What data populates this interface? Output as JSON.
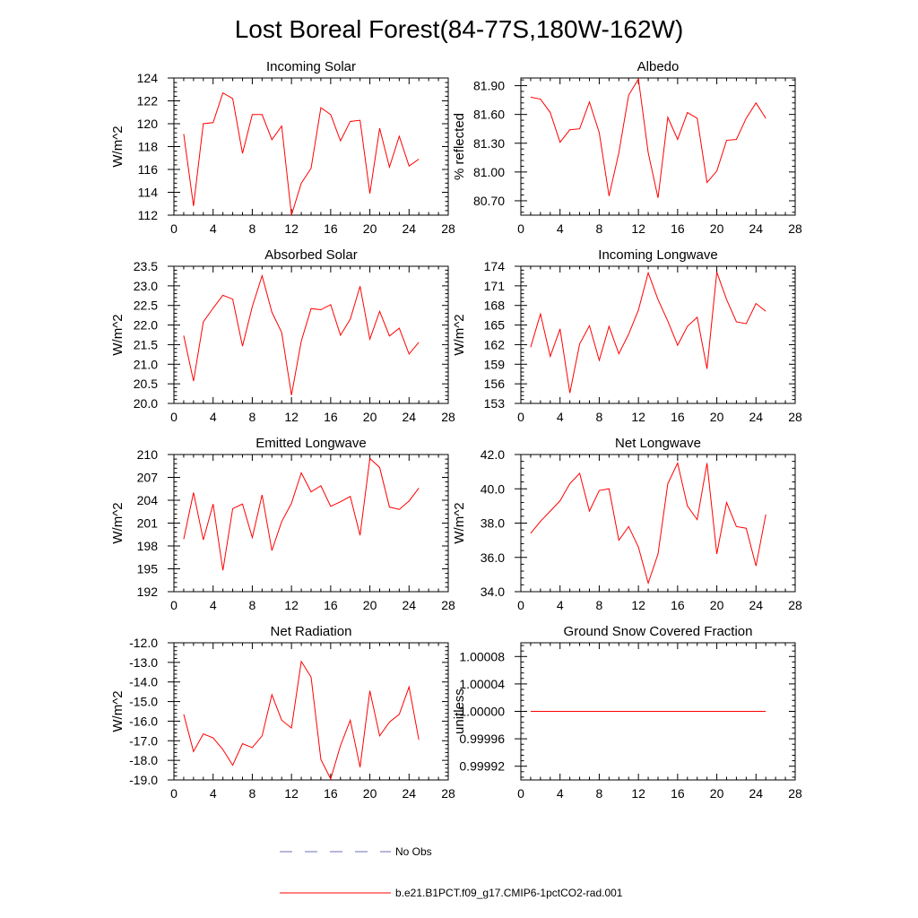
{
  "figure": {
    "title": "Lost Boreal Forest(84-77S,180W-162W)",
    "legend": [
      {
        "label": "No Obs",
        "color": "#6f6fb5",
        "dash": "dashed"
      },
      {
        "label": "b.e21.B1PCT.f09_g17.CMIP6-1pctCO2-rad.001",
        "color": "#ff0000",
        "dash": "solid"
      }
    ]
  },
  "chart_data": [
    {
      "type": "line",
      "title": "Incoming Solar",
      "ylabel": "W/m^2",
      "xlim": [
        0,
        28
      ],
      "ylim": [
        112,
        124
      ],
      "xticks": [
        "0",
        "4",
        "8",
        "12",
        "16",
        "20",
        "24",
        "28"
      ],
      "yticks": [
        "112",
        "114",
        "116",
        "118",
        "120",
        "122",
        "124"
      ],
      "x": [
        1,
        2,
        3,
        4,
        5,
        6,
        7,
        8,
        9,
        10,
        11,
        12,
        13,
        14,
        15,
        16,
        17,
        18,
        19,
        20,
        21,
        22,
        23,
        24,
        25
      ],
      "series": [
        {
          "color": "#ff0000",
          "values": [
            119.1,
            112.8,
            120.0,
            120.1,
            122.7,
            122.2,
            117.4,
            120.8,
            120.8,
            118.6,
            119.8,
            112.0,
            114.8,
            116.1,
            121.4,
            120.8,
            118.5,
            120.2,
            120.3,
            113.9,
            119.6,
            116.2,
            118.9,
            116.3,
            116.9
          ]
        }
      ]
    },
    {
      "type": "line",
      "title": "Albedo",
      "ylabel": "% reflected",
      "xlim": [
        0,
        28
      ],
      "ylim": [
        80.55,
        81.98
      ],
      "xticks": [
        "0",
        "4",
        "8",
        "12",
        "16",
        "20",
        "24",
        "28"
      ],
      "yticks": [
        "80.70",
        "81.00",
        "81.30",
        "81.60",
        "81.90"
      ],
      "x": [
        1,
        2,
        3,
        4,
        5,
        6,
        7,
        8,
        9,
        10,
        11,
        12,
        13,
        14,
        15,
        16,
        17,
        18,
        19,
        20,
        21,
        22,
        23,
        24,
        25
      ],
      "series": [
        {
          "color": "#ff0000",
          "values": [
            81.78,
            81.76,
            81.62,
            81.31,
            81.44,
            81.45,
            81.73,
            81.41,
            80.75,
            81.2,
            81.8,
            81.97,
            81.2,
            80.73,
            81.57,
            81.34,
            81.62,
            81.56,
            80.89,
            81.01,
            81.33,
            81.34,
            81.56,
            81.72,
            81.56
          ]
        }
      ]
    },
    {
      "type": "line",
      "title": "Absorbed Solar",
      "ylabel": "W/m^2",
      "xlim": [
        0,
        28
      ],
      "ylim": [
        20.0,
        23.5
      ],
      "xticks": [
        "0",
        "4",
        "8",
        "12",
        "16",
        "20",
        "24",
        "28"
      ],
      "yticks": [
        "20.0",
        "20.5",
        "21.0",
        "21.5",
        "22.0",
        "22.5",
        "23.0",
        "23.5"
      ],
      "x": [
        1,
        2,
        3,
        4,
        5,
        6,
        7,
        8,
        9,
        10,
        11,
        12,
        13,
        14,
        15,
        16,
        17,
        18,
        19,
        20,
        21,
        22,
        23,
        24,
        25
      ],
      "series": [
        {
          "color": "#ff0000",
          "values": [
            21.73,
            20.57,
            22.08,
            22.43,
            22.76,
            22.66,
            21.46,
            22.47,
            23.26,
            22.33,
            21.81,
            20.21,
            21.59,
            22.42,
            22.39,
            22.52,
            21.74,
            22.15,
            22.99,
            21.64,
            22.35,
            21.72,
            21.92,
            21.26,
            21.56
          ]
        }
      ]
    },
    {
      "type": "line",
      "title": "Incoming Longwave",
      "ylabel": "W/m^2",
      "xlim": [
        0,
        28
      ],
      "ylim": [
        153,
        174
      ],
      "xticks": [
        "0",
        "4",
        "8",
        "12",
        "16",
        "20",
        "24",
        "28"
      ],
      "yticks": [
        "153",
        "156",
        "159",
        "162",
        "165",
        "168",
        "171",
        "174"
      ],
      "x": [
        1,
        2,
        3,
        4,
        5,
        6,
        7,
        8,
        9,
        10,
        11,
        12,
        13,
        14,
        15,
        16,
        17,
        18,
        19,
        20,
        21,
        22,
        23,
        24,
        25
      ],
      "series": [
        {
          "color": "#ff0000",
          "values": [
            161.6,
            166.7,
            160.2,
            164.4,
            154.6,
            162.1,
            164.9,
            159.6,
            164.8,
            160.6,
            163.6,
            167.3,
            173.0,
            168.9,
            165.6,
            161.9,
            164.8,
            166.2,
            158.3,
            173.1,
            168.9,
            165.5,
            165.2,
            168.3,
            167.1
          ]
        }
      ]
    },
    {
      "type": "line",
      "title": "Emitted Longwave",
      "ylabel": "W/m^2",
      "xlim": [
        0,
        28
      ],
      "ylim": [
        192,
        210
      ],
      "xticks": [
        "0",
        "4",
        "8",
        "12",
        "16",
        "20",
        "24",
        "28"
      ],
      "yticks": [
        "192",
        "195",
        "198",
        "201",
        "204",
        "207",
        "210"
      ],
      "x": [
        1,
        2,
        3,
        4,
        5,
        6,
        7,
        8,
        9,
        10,
        11,
        12,
        13,
        14,
        15,
        16,
        17,
        18,
        19,
        20,
        21,
        22,
        23,
        24,
        25
      ],
      "series": [
        {
          "color": "#ff0000",
          "values": [
            198.9,
            205.0,
            198.8,
            203.5,
            194.8,
            202.9,
            203.5,
            199.1,
            204.7,
            197.4,
            201.2,
            203.6,
            207.6,
            205.1,
            205.9,
            203.2,
            203.8,
            204.5,
            199.4,
            209.5,
            208.3,
            203.1,
            202.8,
            203.9,
            205.6
          ]
        }
      ]
    },
    {
      "type": "line",
      "title": "Net Longwave",
      "ylabel": "W/m^2",
      "xlim": [
        0,
        28
      ],
      "ylim": [
        34.0,
        42.0
      ],
      "xticks": [
        "0",
        "4",
        "8",
        "12",
        "16",
        "20",
        "24",
        "28"
      ],
      "yticks": [
        "34.0",
        "36.0",
        "38.0",
        "40.0",
        "42.0"
      ],
      "x": [
        1,
        2,
        3,
        4,
        5,
        6,
        7,
        8,
        9,
        10,
        11,
        12,
        13,
        14,
        15,
        16,
        17,
        18,
        19,
        20,
        21,
        22,
        23,
        24,
        25
      ],
      "series": [
        {
          "color": "#ff0000",
          "values": [
            37.4,
            38.1,
            38.7,
            39.3,
            40.3,
            40.9,
            38.7,
            39.9,
            40.0,
            37.0,
            37.8,
            36.6,
            34.5,
            36.2,
            40.3,
            41.5,
            39.0,
            38.2,
            41.5,
            36.2,
            39.2,
            37.8,
            37.7,
            35.5,
            38.5
          ]
        }
      ]
    },
    {
      "type": "line",
      "title": "Net Radiation",
      "ylabel": "W/m^2",
      "xlim": [
        0,
        28
      ],
      "ylim": [
        -19.0,
        -12.0
      ],
      "xticks": [
        "0",
        "4",
        "8",
        "12",
        "16",
        "20",
        "24",
        "28"
      ],
      "yticks": [
        "-19.0",
        "-18.0",
        "-17.0",
        "-16.0",
        "-15.0",
        "-14.0",
        "-13.0",
        "-12.0"
      ],
      "x": [
        1,
        2,
        3,
        4,
        5,
        6,
        7,
        8,
        9,
        10,
        11,
        12,
        13,
        14,
        15,
        16,
        17,
        18,
        19,
        20,
        21,
        22,
        23,
        24,
        25
      ],
      "series": [
        {
          "color": "#ff0000",
          "values": [
            -15.65,
            -17.55,
            -16.65,
            -16.85,
            -17.45,
            -18.25,
            -17.15,
            -17.35,
            -16.75,
            -14.65,
            -15.95,
            -16.35,
            -12.95,
            -13.75,
            -17.95,
            -18.95,
            -17.25,
            -15.95,
            -18.35,
            -14.45,
            -16.75,
            -16.05,
            -15.65,
            -14.25,
            -16.95
          ]
        }
      ]
    },
    {
      "type": "line",
      "title": "Ground Snow Covered Fraction",
      "ylabel": "unitless",
      "xlim": [
        0,
        28
      ],
      "ylim": [
        0.9999,
        1.0001
      ],
      "xticks": [
        "0",
        "4",
        "8",
        "12",
        "16",
        "20",
        "24",
        "28"
      ],
      "yticks": [
        "0.99992",
        "0.99996",
        "1.00000",
        "1.00004",
        "1.00008"
      ],
      "x": [
        1,
        2,
        3,
        4,
        5,
        6,
        7,
        8,
        9,
        10,
        11,
        12,
        13,
        14,
        15,
        16,
        17,
        18,
        19,
        20,
        21,
        22,
        23,
        24,
        25
      ],
      "series": [
        {
          "color": "#ff0000",
          "values": [
            1,
            1,
            1,
            1,
            1,
            1,
            1,
            1,
            1,
            1,
            1,
            1,
            1,
            1,
            1,
            1,
            1,
            1,
            1,
            1,
            1,
            1,
            1,
            1,
            1
          ]
        }
      ]
    }
  ]
}
